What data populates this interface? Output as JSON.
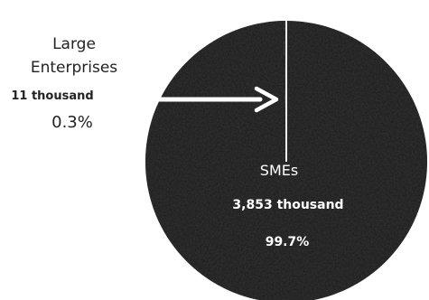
{
  "chart_data": {
    "type": "pie",
    "slices": [
      {
        "label": "SMEs",
        "count_label": "3,853 thousand",
        "percent_label": "99.7%",
        "value": 3853,
        "percent": 99.7
      },
      {
        "label": "Large Enterprises",
        "label_lines": [
          "Large",
          "Enterprises"
        ],
        "count_label": "11 thousand",
        "percent_label": "0.3%",
        "value": 11,
        "percent": 0.3
      }
    ]
  },
  "colors": {
    "pie_fill": "#2f2f2f",
    "pie_speckle_light": "#8a8a8a",
    "pie_speckle_dark": "#111111",
    "divider": "#f2f2f2",
    "arrow": "#ffffff",
    "outside_text": "#222222",
    "inside_text": "#ffffff"
  }
}
